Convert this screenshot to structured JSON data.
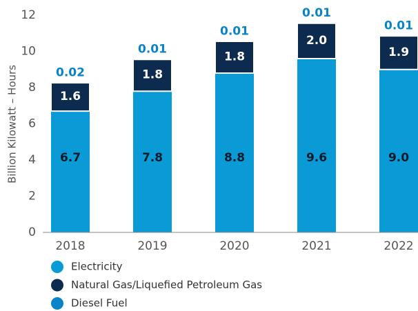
{
  "chart_data": {
    "type": "stacked_bar",
    "y_axis_label": "Billion Kilowatt – Hours",
    "categories": [
      "2018",
      "2019",
      "2020",
      "2021",
      "2022"
    ],
    "series": [
      {
        "name": "Electricity",
        "color": "#0a9bd6",
        "values": [
          6.7,
          7.8,
          8.8,
          9.6,
          9
        ],
        "value_labels": [
          "6.7",
          "7.8",
          "8.8",
          "9.6",
          "9.0"
        ]
      },
      {
        "name": "Natural Gas/Liquefied Petroleum Gas",
        "color": "#0d2a4f",
        "values": [
          1.6,
          1.8,
          1.8,
          2,
          1.9
        ],
        "value_labels": [
          "1.6",
          "1.8",
          "1.8",
          "2.0",
          "1.9"
        ]
      },
      {
        "name": "Diesel Fuel",
        "color": "#0a84c8",
        "values": [
          0.02,
          0.01,
          0.01,
          0.01,
          0.01
        ]
      }
    ],
    "ylim": [
      0,
      12
    ],
    "yticks": [
      0,
      2,
      4,
      6,
      8,
      10,
      12
    ],
    "grid": false
  }
}
